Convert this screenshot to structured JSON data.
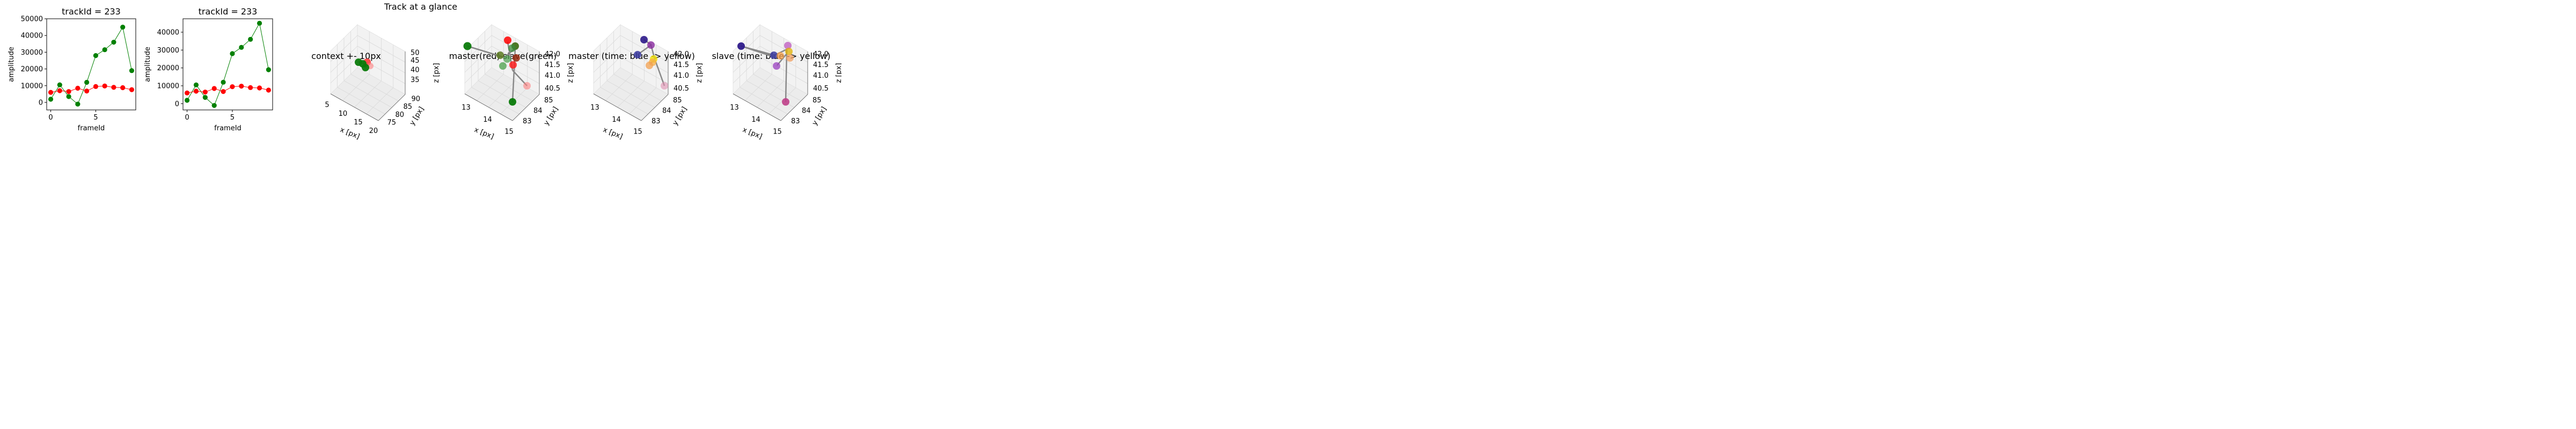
{
  "suptitle": "Track at a glance",
  "colors": {
    "green": "#008000",
    "red": "#ff0000",
    "line_master": "#ff0000",
    "line_slave": "#008000"
  },
  "chart_data": [
    {
      "type": "line",
      "title": "trackId = 233",
      "xlabel": "frameId",
      "ylabel": "amplitude",
      "xlim": [
        -0.45,
        9.45
      ],
      "ylim": [
        -4500,
        50000
      ],
      "x_ticks": [
        "0",
        "5"
      ],
      "y_ticks": [
        "0",
        "10000",
        "20000",
        "30000",
        "40000",
        "50000"
      ],
      "x": [
        0,
        1,
        2,
        3,
        4,
        5,
        6,
        7,
        8,
        9
      ],
      "series": [
        {
          "color": "green",
          "values": [
            1900,
            10500,
            3500,
            -1000,
            12000,
            28000,
            31500,
            36000,
            45000,
            19000
          ]
        },
        {
          "color": "red",
          "values": [
            6000,
            7000,
            6500,
            8500,
            6800,
            9500,
            9800,
            9000,
            8800,
            7600
          ]
        }
      ]
    },
    {
      "type": "line",
      "title": "trackId = 233",
      "xlabel": "frameId",
      "ylabel": "amplitude",
      "xlim": [
        -0.45,
        9.45
      ],
      "ylim": [
        -3500,
        47500
      ],
      "x_ticks": [
        "0",
        "5"
      ],
      "y_ticks": [
        "0",
        "10000",
        "20000",
        "30000",
        "40000"
      ],
      "x": [
        0,
        1,
        2,
        3,
        4,
        5,
        6,
        7,
        8,
        9
      ],
      "series": [
        {
          "color": "green",
          "values": [
            1900,
            10500,
            3500,
            -1000,
            12000,
            28000,
            31500,
            36000,
            45000,
            19000
          ]
        },
        {
          "color": "red",
          "values": [
            6000,
            7000,
            6500,
            8500,
            6800,
            9500,
            9800,
            9000,
            8800,
            7600
          ]
        }
      ]
    },
    {
      "type": "scatter",
      "title": "context +- 10px",
      "xlabel": "x [px]",
      "ylabel": "y [px]",
      "zlabel": "z [px]",
      "x_ticks": [
        "5",
        "10",
        "15",
        "20"
      ],
      "y_ticks": [
        "75",
        "80",
        "85",
        "90"
      ],
      "z_ticks": [
        "35",
        "40",
        "45",
        "50"
      ]
    },
    {
      "type": "scatter",
      "title": "master(red) slave(green)",
      "xlabel": "x [px]",
      "ylabel": "y [px]",
      "zlabel": "z [px]",
      "x_ticks": [
        "13",
        "14",
        "15"
      ],
      "y_ticks": [
        "83",
        "84",
        "85"
      ],
      "z_ticks": [
        "40.5",
        "41.0",
        "41.5",
        "42.0"
      ]
    },
    {
      "type": "scatter",
      "title": "master (time: blue -> yellow)",
      "xlabel": "x [px]",
      "ylabel": "y [px]",
      "zlabel": "z [px]",
      "x_ticks": [
        "13",
        "14",
        "15"
      ],
      "y_ticks": [
        "83",
        "84",
        "85"
      ],
      "z_ticks": [
        "40.5",
        "41.0",
        "41.5",
        "42.0"
      ]
    },
    {
      "type": "scatter",
      "title": "slave (time: blue -> yellow)",
      "xlabel": "x [px]",
      "ylabel": "y [px]",
      "zlabel": "z [px]",
      "x_ticks": [
        "13",
        "14",
        "15"
      ],
      "y_ticks": [
        "83",
        "84",
        "85"
      ],
      "z_ticks": [
        "40.5",
        "41.0",
        "41.5",
        "42.0"
      ]
    }
  ]
}
